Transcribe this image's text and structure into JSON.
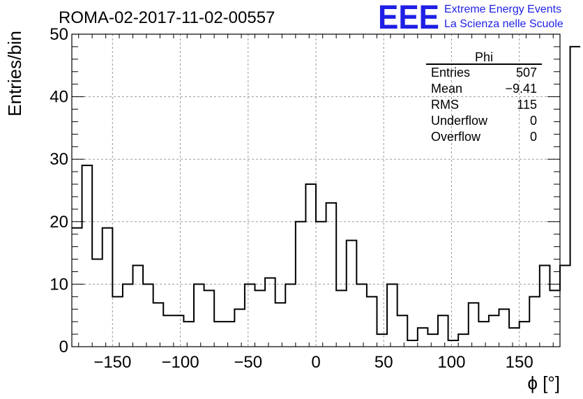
{
  "chart_data": {
    "type": "histogram",
    "title": "ROMA-02-2017-11-02-00557",
    "xlabel": "ϕ [°]",
    "ylabel": "Entries/bin",
    "xlim": [
      -180,
      180
    ],
    "ylim": [
      0,
      50
    ],
    "x_ticks": [
      -150,
      -100,
      -50,
      0,
      50,
      100,
      150
    ],
    "y_ticks": [
      0,
      10,
      20,
      30,
      40,
      50
    ],
    "grid": true,
    "bin_width": 7.5,
    "bin_edges_start": -180,
    "values": [
      19,
      29,
      14,
      19,
      8,
      10,
      13,
      10,
      7,
      5,
      5,
      4,
      10,
      9,
      4,
      4,
      6,
      10,
      9,
      11,
      7,
      10,
      20,
      26,
      20,
      23,
      9,
      17,
      10,
      8,
      2,
      10,
      5,
      1,
      3,
      2,
      5,
      1,
      2,
      7,
      4,
      5,
      6,
      3,
      4,
      8,
      13,
      9,
      13,
      48
    ],
    "stats_box": {
      "title": "Phi",
      "rows": [
        {
          "label": "Entries",
          "value": "507"
        },
        {
          "label": "Mean",
          "value": "−9.41"
        },
        {
          "label": "RMS",
          "value": "115"
        },
        {
          "label": "Underflow",
          "value": "0"
        },
        {
          "label": "Overflow",
          "value": "0"
        }
      ]
    }
  },
  "branding": {
    "logo": "EEE",
    "line1": "Extreme Energy Events",
    "line2": "La Scienza nelle Scuole",
    "color": "#1f1fe6"
  },
  "colors": {
    "line": "#000000",
    "grid": "#9a9a9a",
    "background": "#ffffff"
  }
}
